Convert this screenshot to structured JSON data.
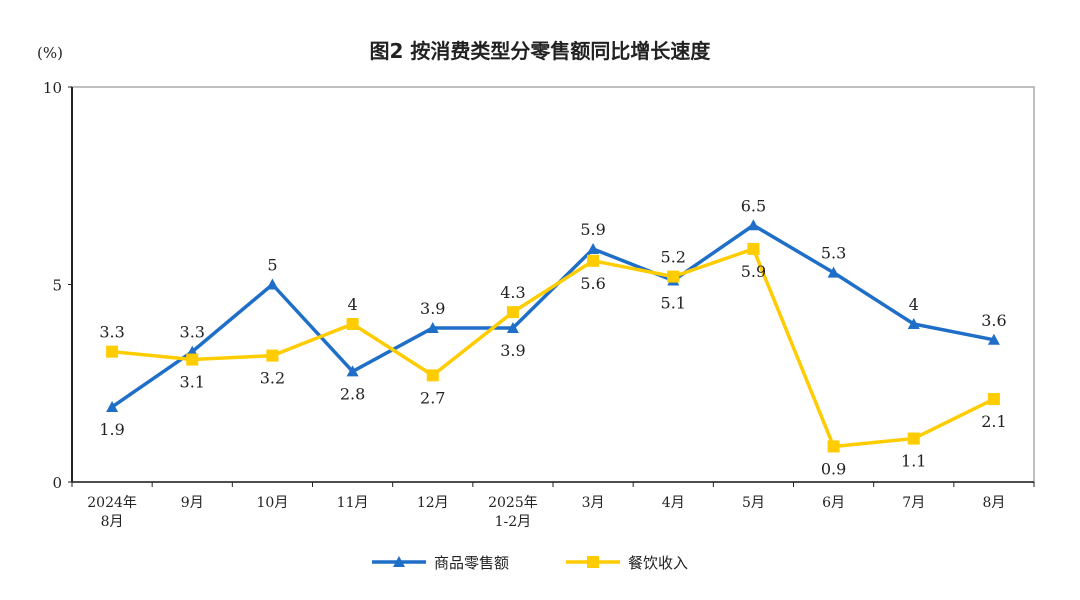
{
  "chart_data": {
    "type": "line",
    "title": "图2  按消费类型分零售额同比增长速度",
    "ylabel": "(%)",
    "xlabel": "",
    "ylim": [
      0,
      10
    ],
    "yticks": [
      0,
      5,
      10
    ],
    "grid": false,
    "legend_position": "bottom-center",
    "categories": [
      [
        "2024年",
        "8月"
      ],
      [
        "9月"
      ],
      [
        "10月"
      ],
      [
        "11月"
      ],
      [
        "12月"
      ],
      [
        "2025年",
        "1-2月"
      ],
      [
        "3月"
      ],
      [
        "4月"
      ],
      [
        "5月"
      ],
      [
        "6月"
      ],
      [
        "7月"
      ],
      [
        "8月"
      ]
    ],
    "series": [
      {
        "name": "商品零售额",
        "color": "#1f6fc8",
        "marker": "triangle",
        "values": [
          1.9,
          3.3,
          5.0,
          2.8,
          3.9,
          3.9,
          5.9,
          5.1,
          6.5,
          5.3,
          4.0,
          3.6
        ],
        "label_side": [
          "below",
          "above",
          "above",
          "below",
          "above",
          "below",
          "above",
          "below",
          "above",
          "above",
          "above",
          "above"
        ]
      },
      {
        "name": "餐饮收入",
        "color": "#ffcc00",
        "marker": "square",
        "values": [
          3.3,
          3.1,
          3.2,
          4.0,
          2.7,
          4.3,
          5.6,
          5.2,
          5.9,
          0.9,
          1.1,
          2.1
        ],
        "label_side": [
          "above",
          "below",
          "below",
          "above",
          "below",
          "above",
          "below",
          "above",
          "below",
          "below",
          "below",
          "below"
        ]
      }
    ]
  }
}
